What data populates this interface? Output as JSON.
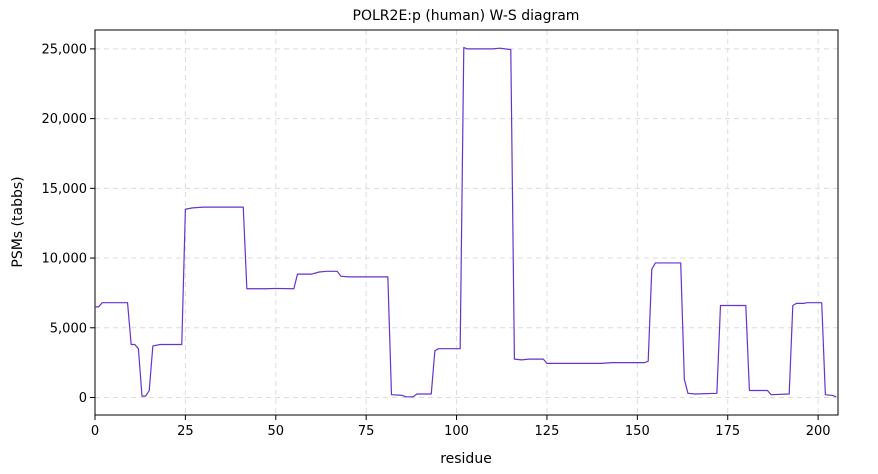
{
  "chart_data": {
    "type": "line",
    "title": "POLR2E:p (human) W-S diagram",
    "xlabel": "residue",
    "ylabel": "PSMs (tabbs)",
    "x": [
      0,
      1,
      2,
      9,
      10,
      11,
      12,
      13,
      14,
      15,
      16,
      18,
      24,
      25,
      27,
      30,
      41,
      42,
      47,
      50,
      55,
      56,
      60,
      62,
      64,
      67,
      68,
      70,
      81,
      82,
      85,
      86,
      88,
      89,
      93,
      94,
      95,
      101,
      102,
      103,
      110,
      112,
      115,
      116,
      118,
      120,
      124,
      125,
      140,
      143,
      152,
      153,
      154,
      155,
      162,
      163,
      164,
      166,
      172,
      173,
      180,
      181,
      186,
      187,
      192,
      193,
      194,
      196,
      197,
      201,
      202,
      204,
      205
    ],
    "series": [
      {
        "name": "PSMs",
        "color": "#6633cc",
        "values": [
          6500,
          6500,
          6800,
          6800,
          3800,
          3800,
          3500,
          100,
          100,
          500,
          3700,
          3800,
          3800,
          13500,
          13600,
          13650,
          13650,
          7800,
          7800,
          7820,
          7800,
          8850,
          8850,
          9000,
          9050,
          9050,
          8700,
          8650,
          8650,
          200,
          150,
          50,
          50,
          250,
          250,
          3350,
          3500,
          3500,
          25100,
          25000,
          25000,
          25050,
          24950,
          2750,
          2700,
          2750,
          2750,
          2450,
          2450,
          2500,
          2500,
          2600,
          9200,
          9650,
          9650,
          1300,
          300,
          250,
          300,
          6600,
          6600,
          500,
          500,
          200,
          250,
          6600,
          6750,
          6750,
          6800,
          6800,
          200,
          150,
          50
        ]
      }
    ],
    "xlim": [
      0,
      205.5
    ],
    "ylim": [
      -1255,
      26355
    ],
    "xticks": [
      0,
      25,
      50,
      75,
      100,
      125,
      150,
      175,
      200
    ],
    "yticks": [
      0,
      {
        "value": 5000,
        "label": "5,000"
      },
      {
        "value": 10000,
        "label": "10,000"
      },
      {
        "value": 15000,
        "label": "15,000"
      },
      {
        "value": 20000,
        "label": "20,000"
      },
      {
        "value": 25000,
        "label": "25,000"
      }
    ],
    "grid": true
  }
}
